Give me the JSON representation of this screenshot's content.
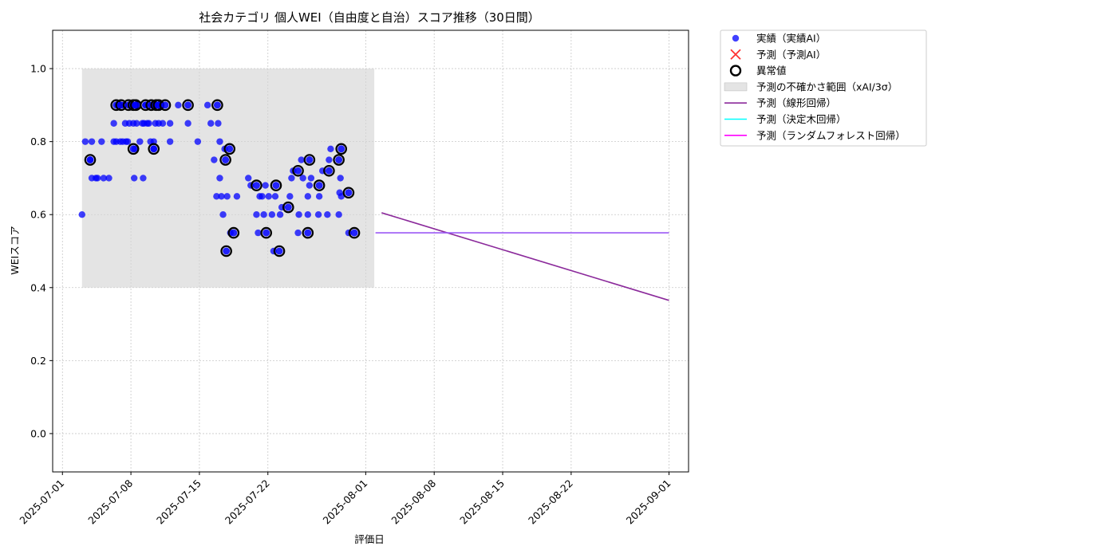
{
  "chart_data": {
    "type": "scatter",
    "title": "社会カテゴリ 個人WEI（自由度と自治）スコア推移（30日間）",
    "xlabel": "評価日",
    "ylabel": "WEIスコア",
    "xlim": [
      "2025-06-30",
      "2025-09-03"
    ],
    "ylim": [
      -0.105,
      1.105
    ],
    "x_ticks": [
      "2025-07-01",
      "2025-07-08",
      "2025-07-15",
      "2025-07-22",
      "2025-08-01",
      "2025-08-08",
      "2025-08-15",
      "2025-08-22",
      "2025-09-01"
    ],
    "y_ticks": [
      0.0,
      0.2,
      0.4,
      0.6,
      0.8,
      1.0
    ],
    "y_tick_labels": [
      "0.0",
      "0.2",
      "0.4",
      "0.6",
      "0.8",
      "1.0"
    ],
    "grid": true,
    "legend_position": "outside-top-right",
    "colors": {
      "actual": "#0000ff",
      "predicted": "#ff3333",
      "anomaly": "#000000",
      "uncertainty": "#d3d3d3",
      "linear": "#8b2a9b",
      "tree": "#00ffff",
      "forest": "#ff00ff",
      "combined": "#9b59f5"
    },
    "legend": [
      {
        "key": "actual",
        "label": "実績（実績AI）",
        "marker": "dot"
      },
      {
        "key": "predicted",
        "label": "予測（予測AI）",
        "marker": "x"
      },
      {
        "key": "anomaly",
        "label": "異常値",
        "marker": "ring"
      },
      {
        "key": "uncertainty",
        "label": "予測の不確かさ範囲（xAI/3σ）",
        "marker": "patch"
      },
      {
        "key": "linear",
        "label": "予測（線形回帰）",
        "marker": "line"
      },
      {
        "key": "tree",
        "label": "予測（決定木回帰）",
        "marker": "line"
      },
      {
        "key": "forest",
        "label": "予測（ランダムフォレスト回帰）",
        "marker": "line"
      }
    ],
    "uncertainty_band": {
      "x_start": "2025-07-03",
      "x_end": "2025-08-01T21:00",
      "y_low": 0.4,
      "y_high": 1.0
    },
    "actual_points": [
      [
        "2025-07-03",
        0.6
      ],
      [
        "2025-07-03T08:00",
        0.8
      ],
      [
        "2025-07-03T20:00",
        0.75
      ],
      [
        "2025-07-04",
        0.8
      ],
      [
        "2025-07-04",
        0.7
      ],
      [
        "2025-07-04T10:00",
        0.7
      ],
      [
        "2025-07-04T14:00",
        0.7
      ],
      [
        "2025-07-05",
        0.8
      ],
      [
        "2025-07-05T05:00",
        0.7
      ],
      [
        "2025-07-05T18:00",
        0.7
      ],
      [
        "2025-07-06T06:00",
        0.8
      ],
      [
        "2025-07-06T06:00",
        0.85
      ],
      [
        "2025-07-06T12:00",
        0.8
      ],
      [
        "2025-07-06T16:00",
        0.9
      ],
      [
        "2025-07-06T22:00",
        0.8
      ],
      [
        "2025-07-07T02:00",
        0.9
      ],
      [
        "2025-07-07T04:00",
        0.8
      ],
      [
        "2025-07-07T10:00",
        0.85
      ],
      [
        "2025-07-07T12:00",
        0.8
      ],
      [
        "2025-07-07T16:00",
        0.8
      ],
      [
        "2025-07-07T20:00",
        0.85
      ],
      [
        "2025-07-08T02:00",
        0.9
      ],
      [
        "2025-07-08T06:00",
        0.85
      ],
      [
        "2025-07-08T08:00",
        0.7
      ],
      [
        "2025-07-08T10:00",
        0.78
      ],
      [
        "2025-07-08T12:00",
        0.9
      ],
      [
        "2025-07-08T14:00",
        0.85
      ],
      [
        "2025-07-08T18:00",
        0.9
      ],
      [
        "2025-07-08T22:00",
        0.8
      ],
      [
        "2025-07-09T04:00",
        0.85
      ],
      [
        "2025-07-09T06:00",
        0.7
      ],
      [
        "2025-07-09T08:00",
        0.85
      ],
      [
        "2025-07-09T12:00",
        0.9
      ],
      [
        "2025-07-09T16:00",
        0.85
      ],
      [
        "2025-07-09T20:00",
        0.85
      ],
      [
        "2025-07-10",
        0.8
      ],
      [
        "2025-07-10T04:00",
        0.9
      ],
      [
        "2025-07-10T08:00",
        0.8
      ],
      [
        "2025-07-10T08:00",
        0.78
      ],
      [
        "2025-07-10T12:00",
        0.85
      ],
      [
        "2025-07-10T16:00",
        0.9
      ],
      [
        "2025-07-10T20:00",
        0.85
      ],
      [
        "2025-07-11T02:00",
        0.9
      ],
      [
        "2025-07-11T06:00",
        0.85
      ],
      [
        "2025-07-12",
        0.85
      ],
      [
        "2025-07-12",
        0.8
      ],
      [
        "2025-07-12T20:00",
        0.9
      ],
      [
        "2025-07-13T20:00",
        0.85
      ],
      [
        "2025-07-14T20:00",
        0.8
      ],
      [
        "2025-07-15T20:00",
        0.9
      ],
      [
        "2025-07-16T04:00",
        0.85
      ],
      [
        "2025-07-16T12:00",
        0.75
      ],
      [
        "2025-07-16T18:00",
        0.65
      ],
      [
        "2025-07-16T22:00",
        0.85
      ],
      [
        "2025-07-17T02:00",
        0.8
      ],
      [
        "2025-07-17T02:00",
        0.7
      ],
      [
        "2025-07-17T06:00",
        0.65
      ],
      [
        "2025-07-17T10:00",
        0.6
      ],
      [
        "2025-07-17T14:00",
        0.78
      ],
      [
        "2025-07-17T20:00",
        0.65
      ],
      [
        "2025-07-18T04:00",
        0.55
      ],
      [
        "2025-07-18T20:00",
        0.65
      ],
      [
        "2025-07-20",
        0.7
      ],
      [
        "2025-07-20T06:00",
        0.68
      ],
      [
        "2025-07-20T20:00",
        0.6
      ],
      [
        "2025-07-21",
        0.55
      ],
      [
        "2025-07-21T04:00",
        0.65
      ],
      [
        "2025-07-21T10:00",
        0.65
      ],
      [
        "2025-07-21T14:00",
        0.6
      ],
      [
        "2025-07-21T18:00",
        0.68
      ],
      [
        "2025-07-22T02:00",
        0.65
      ],
      [
        "2025-07-22T10:00",
        0.6
      ],
      [
        "2025-07-22T14:00",
        0.5
      ],
      [
        "2025-07-22T18:00",
        0.65
      ],
      [
        "2025-07-23T06:00",
        0.6
      ],
      [
        "2025-07-23T10:00",
        0.62
      ],
      [
        "2025-07-24T06:00",
        0.65
      ],
      [
        "2025-07-24T10:00",
        0.7
      ],
      [
        "2025-07-24T14:00",
        0.72
      ],
      [
        "2025-07-25T02:00",
        0.55
      ],
      [
        "2025-07-25T04:00",
        0.6
      ],
      [
        "2025-07-25T10:00",
        0.75
      ],
      [
        "2025-07-25T14:00",
        0.7
      ],
      [
        "2025-07-26T02:00",
        0.6
      ],
      [
        "2025-07-26T02:00",
        0.65
      ],
      [
        "2025-07-26T06:00",
        0.68
      ],
      [
        "2025-07-26T10:00",
        0.7
      ],
      [
        "2025-07-27T04:00",
        0.6
      ],
      [
        "2025-07-27T06:00",
        0.65
      ],
      [
        "2025-07-27T14:00",
        0.72
      ],
      [
        "2025-07-28T02:00",
        0.6
      ],
      [
        "2025-07-28T06:00",
        0.75
      ],
      [
        "2025-07-28T10:00",
        0.78
      ],
      [
        "2025-07-29T06:00",
        0.6
      ],
      [
        "2025-07-29T08:00",
        0.66
      ],
      [
        "2025-07-29T10:00",
        0.7
      ],
      [
        "2025-07-29T12:00",
        0.65
      ],
      [
        "2025-07-30T06:00",
        0.55
      ]
    ],
    "anomaly_points": [
      [
        "2025-07-03T20:00",
        0.75
      ],
      [
        "2025-07-06T12:00",
        0.9
      ],
      [
        "2025-07-07",
        0.9
      ],
      [
        "2025-07-07T18:00",
        0.9
      ],
      [
        "2025-07-08T06:00",
        0.78
      ],
      [
        "2025-07-08T06:00",
        0.9
      ],
      [
        "2025-07-08T12:00",
        0.9
      ],
      [
        "2025-07-09T12:00",
        0.9
      ],
      [
        "2025-07-10T02:00",
        0.9
      ],
      [
        "2025-07-10T08:00",
        0.78
      ],
      [
        "2025-07-10T14:00",
        0.9
      ],
      [
        "2025-07-10T20:00",
        0.9
      ],
      [
        "2025-07-11T12:00",
        0.9
      ],
      [
        "2025-07-13T20:00",
        0.9
      ],
      [
        "2025-07-16T20:00",
        0.9
      ],
      [
        "2025-07-17T16:00",
        0.75
      ],
      [
        "2025-07-17T18:00",
        0.5
      ],
      [
        "2025-07-18T02:00",
        0.78
      ],
      [
        "2025-07-18T12:00",
        0.55
      ],
      [
        "2025-07-20T20:00",
        0.68
      ],
      [
        "2025-07-21T20:00",
        0.55
      ],
      [
        "2025-07-22T20:00",
        0.68
      ],
      [
        "2025-07-23T04:00",
        0.5
      ],
      [
        "2025-07-24T02:00",
        0.62
      ],
      [
        "2025-07-25T02:00",
        0.72
      ],
      [
        "2025-07-26T02:00",
        0.55
      ],
      [
        "2025-07-26T06:00",
        0.75
      ],
      [
        "2025-07-27T06:00",
        0.68
      ],
      [
        "2025-07-28T06:00",
        0.72
      ],
      [
        "2025-07-29T06:00",
        0.75
      ],
      [
        "2025-07-29T12:00",
        0.78
      ],
      [
        "2025-07-30T06:00",
        0.66
      ],
      [
        "2025-07-30T20:00",
        0.55
      ]
    ],
    "series": [
      {
        "key": "linear",
        "name": "予測（線形回帰）",
        "x": [
          "2025-08-02T15:00",
          "2025-09-01"
        ],
        "y": [
          0.605,
          0.365
        ]
      },
      {
        "key": "combined",
        "x": [
          "2025-08-02",
          "2025-09-01"
        ],
        "y": [
          0.55,
          0.55
        ]
      }
    ]
  }
}
